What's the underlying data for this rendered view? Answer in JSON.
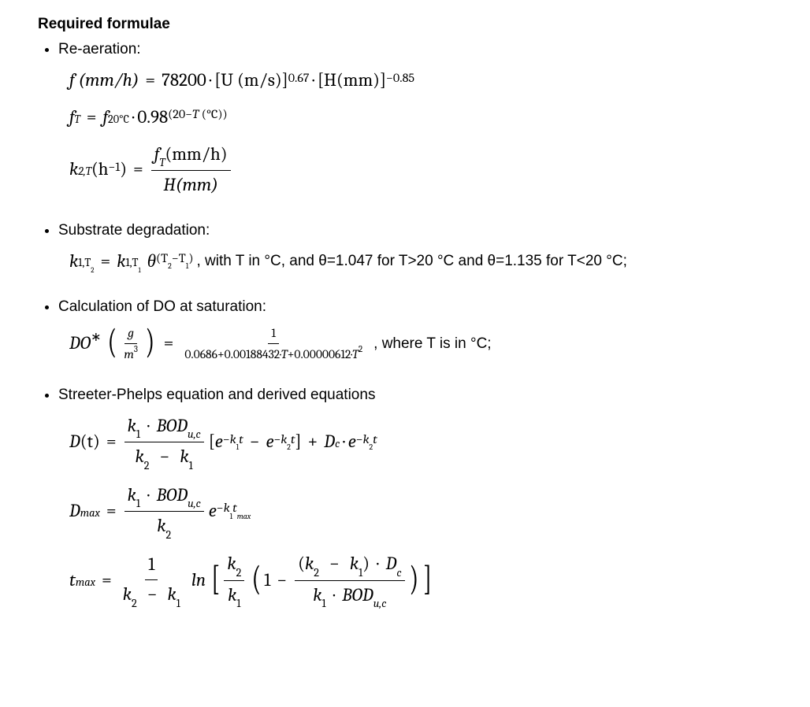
{
  "title": "Required formulae",
  "sections": {
    "reaeration": {
      "label": "Re-aeration:",
      "eq1_left": "f (mm/h)",
      "eq1_const": "78200",
      "eq1_upart": "[U (m/s)]",
      "eq1_uexp": "0.67",
      "eq1_hpart": "[H(mm)]",
      "eq1_hexp": "−0.85",
      "eq2_left_f": "f",
      "eq2_left_sub": "T",
      "eq2_right_f": "f",
      "eq2_right_sub": "20°C",
      "eq2_base": "0.98",
      "eq2_exp_open": "(20−",
      "eq2_exp_sym": "T",
      "eq2_exp_unit": " (°C))",
      "eq3_k": "k",
      "eq3_ksub": "2,T",
      "eq3_unit": "(h",
      "eq3_unitexp": "−1",
      "eq3_unitclose": ")",
      "eq3_num_f": "f",
      "eq3_num_sub": "T",
      "eq3_num_unit": "(mm/h)",
      "eq3_den": "H(mm)"
    },
    "substrate": {
      "label": "Substrate degradation:",
      "k": "k",
      "sub_left": "1,T",
      "sub_left2": "2",
      "sub_right": "1,T",
      "sub_right2": "1",
      "theta": "θ",
      "theta_exp_a": "(T",
      "theta_exp_b": "2",
      "theta_exp_c": "−T",
      "theta_exp_d": "1",
      "theta_exp_e": ")",
      "note": ", with T in °C, and θ=1.047 for T>20 °C and θ=1.135 for T<20 °C;"
    },
    "do_sat": {
      "label": "Calculation of DO at saturation:",
      "lhs": "DO",
      "lhs_star": "∗",
      "frac_num": "g",
      "frac_den_m": "m",
      "frac_den_exp": "3",
      "rhs_num": "1",
      "rhs_den_a": "0.0686+0.00188432·",
      "rhs_den_T": "T",
      "rhs_den_b": "+0.00000612·",
      "rhs_den_Texp": "2",
      "note": ", where T is in °C;"
    },
    "sp": {
      "label": "Streeter-Phelps equation and derived equations",
      "D": "D",
      "t": "(t)",
      "BOD": "BOD",
      "BODsub": "u,c",
      "k1": "k",
      "k1s": "1",
      "k2": "k",
      "k2s": "2",
      "e": "e",
      "Dc": "D",
      "Dcs": "c",
      "Dmax": "D",
      "Dmaxs": "max",
      "tmax": "t",
      "tmaxs": "max",
      "ln": "ln",
      "one": "1",
      "txt_minus": "−",
      "txt_plus": "+"
    }
  }
}
